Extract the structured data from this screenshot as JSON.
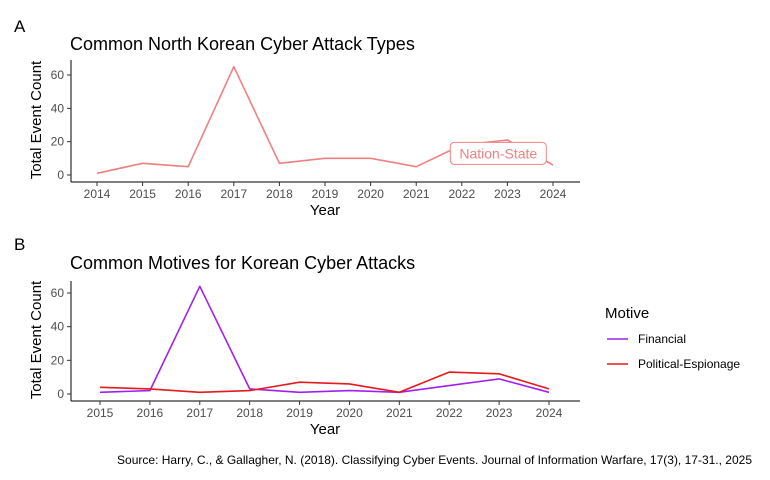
{
  "panels": {
    "a": {
      "letter": "A",
      "title": "Common North Korean Cyber Attack Types",
      "xlabel": "Year",
      "ylabel": "Total Event Count",
      "label_box_text": "Nation-State"
    },
    "b": {
      "letter": "B",
      "title": "Common Motives for Korean Cyber Attacks",
      "xlabel": "Year",
      "ylabel": "Total Event Count"
    }
  },
  "legend": {
    "title": "Motive",
    "items": [
      "Financial",
      "Political-Espionage"
    ]
  },
  "caption": "Source: Harry, C., & Gallagher, N. (2018). Classifying Cyber Events. Journal of Information Warfare, 17(3), 17-31., 2025",
  "chart_data": [
    {
      "type": "line",
      "title": "Common North Korean Cyber Attack Types",
      "xlabel": "Year",
      "ylabel": "Total Event Count",
      "x": [
        2014,
        2015,
        2016,
        2017,
        2018,
        2019,
        2020,
        2021,
        2022,
        2023,
        2024
      ],
      "xticks": [
        "2014",
        "2015",
        "2016",
        "2017",
        "2018",
        "2019",
        "2020",
        "2021",
        "2022",
        "2023",
        "2024"
      ],
      "yticks": [
        0,
        20,
        40,
        60
      ],
      "xlim": [
        2014,
        2024
      ],
      "ylim": [
        0,
        65
      ],
      "grid": false,
      "series": [
        {
          "name": "Nation-State",
          "color": "#F08080",
          "values": [
            1,
            7,
            5,
            65,
            7,
            10,
            10,
            5,
            18,
            21,
            6
          ]
        }
      ],
      "annotations": [
        {
          "text": "Nation-State",
          "x": 2022.8,
          "y": 13
        }
      ]
    },
    {
      "type": "line",
      "title": "Common Motives for Korean Cyber Attacks",
      "xlabel": "Year",
      "ylabel": "Total Event Count",
      "x": [
        2015,
        2016,
        2017,
        2018,
        2019,
        2020,
        2021,
        2022,
        2023,
        2024
      ],
      "xticks": [
        "2015",
        "2016",
        "2017",
        "2018",
        "2019",
        "2020",
        "2021",
        "2022",
        "2023",
        "2024"
      ],
      "yticks": [
        0,
        20,
        40,
        60
      ],
      "xlim": [
        2015,
        2024
      ],
      "ylim": [
        0,
        64
      ],
      "grid": false,
      "legend_position": "right",
      "series": [
        {
          "name": "Financial",
          "color": "#A020F0",
          "values": [
            1,
            2,
            64,
            3,
            1,
            2,
            1,
            5,
            9,
            1
          ]
        },
        {
          "name": "Political-Espionage",
          "color": "#E41A1C",
          "values": [
            4,
            3,
            1,
            2,
            7,
            6,
            1,
            13,
            12,
            3
          ]
        }
      ]
    }
  ]
}
